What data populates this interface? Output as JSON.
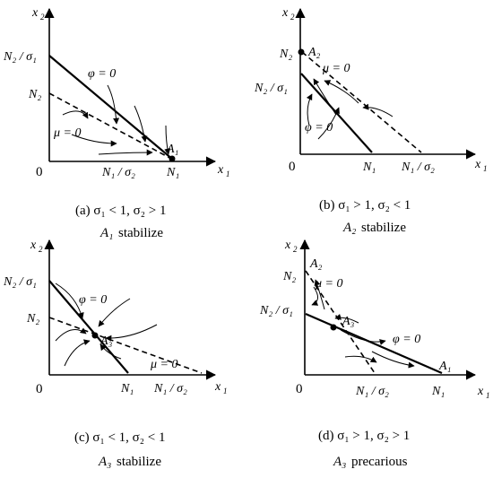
{
  "panels": {
    "a": {
      "axis_x": "x",
      "axis_x_sub": "1",
      "axis_y": "x",
      "axis_y_sub": "2",
      "origin": "0",
      "n2_sigma1": "N₂ / σ₁",
      "n2": "N₂",
      "phi": "φ = 0",
      "mu": "μ = 0",
      "n1_sigma2": "N₁ / σ₂",
      "n1": "N₁",
      "eq": "A₁",
      "caption": "(a) σ₁ < 1, σ₂ > 1",
      "status_point": "A₁",
      "status": "stabilize"
    },
    "b": {
      "axis_x": "x",
      "axis_x_sub": "1",
      "axis_y": "x",
      "axis_y_sub": "2",
      "origin": "0",
      "n2": "N₂",
      "eq": "A₂",
      "mu": "μ = 0",
      "n2_sigma1": "N₂ / σ₁",
      "phi": "φ = 0",
      "n1": "N₁",
      "n1_sigma2": "N₁ / σ₂",
      "caption": "(b) σ₁ > 1, σ₂ < 1",
      "status_point": "A₂",
      "status": "stabilize"
    },
    "c": {
      "axis_x": "x",
      "axis_x_sub": "1",
      "axis_y": "x",
      "axis_y_sub": "2",
      "origin": "0",
      "n2_sigma1": "N₂ / σ₁",
      "phi": "φ = 0",
      "n2": "N₂",
      "eq": "A₃",
      "mu": "μ = 0",
      "n1": "N₁",
      "n1_sigma2": "N₁ / σ₂",
      "caption": "(c) σ₁ < 1, σ₂ < 1",
      "status_point": "A₃",
      "status": "stabilize"
    },
    "d": {
      "axis_x": "x",
      "axis_x_sub": "1",
      "axis_y": "x",
      "axis_y_sub": "2",
      "origin": "0",
      "eq_top": "A₂",
      "n2": "N₂",
      "mu": "μ = 0",
      "n2_sigma1": "N₂ / σ₁",
      "eq": "A₃",
      "phi": "φ = 0",
      "eq_right": "A₁",
      "n1_sigma2": "N₁ / σ₂",
      "n1": "N₁",
      "caption": "(d) σ₁ > 1, σ₂ > 1",
      "status_point": "A₃",
      "status": "precarious"
    }
  }
}
